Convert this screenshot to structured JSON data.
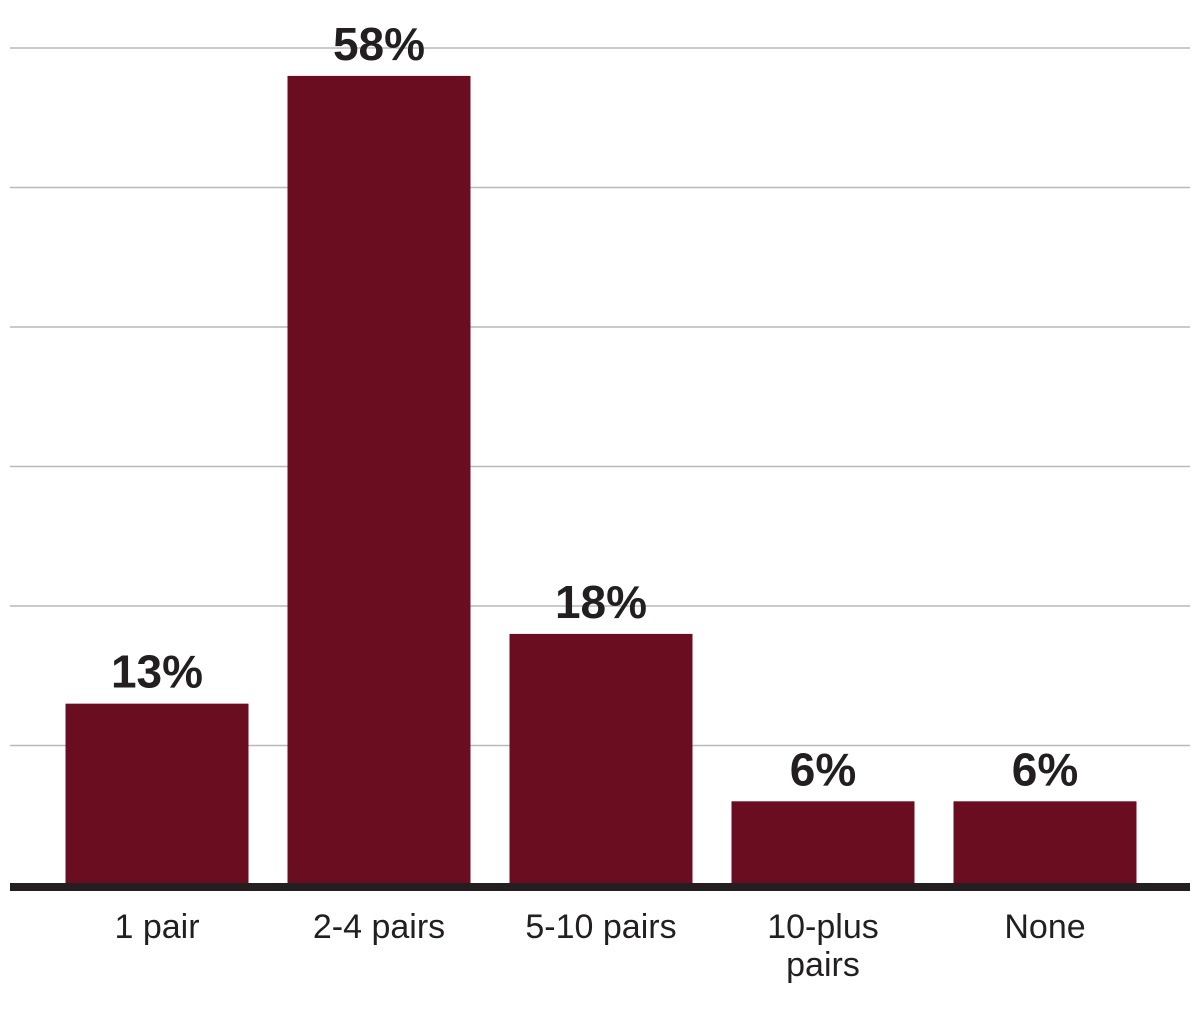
{
  "chart_data": {
    "type": "bar",
    "categories": [
      "1 pair",
      "2-4 pairs",
      "5-10 pairs",
      "10-plus pairs",
      "None"
    ],
    "category_lines": [
      [
        "1 pair"
      ],
      [
        "2-4 pairs"
      ],
      [
        "5-10 pairs"
      ],
      [
        "10-plus",
        "pairs"
      ],
      [
        "None"
      ]
    ],
    "values": [
      13,
      58,
      18,
      6,
      6
    ],
    "value_labels": [
      "13%",
      "58%",
      "18%",
      "6%",
      "6%"
    ],
    "unit": "%",
    "title": "",
    "xlabel": "",
    "ylabel": "",
    "ylim": [
      0,
      60
    ],
    "ygrid_step": 10,
    "grid": true,
    "legend": "none",
    "colors": {
      "bar": "#6b0d20",
      "grid": "#b9b9b9",
      "baseline": "#231f20",
      "text": "#231f20"
    }
  }
}
